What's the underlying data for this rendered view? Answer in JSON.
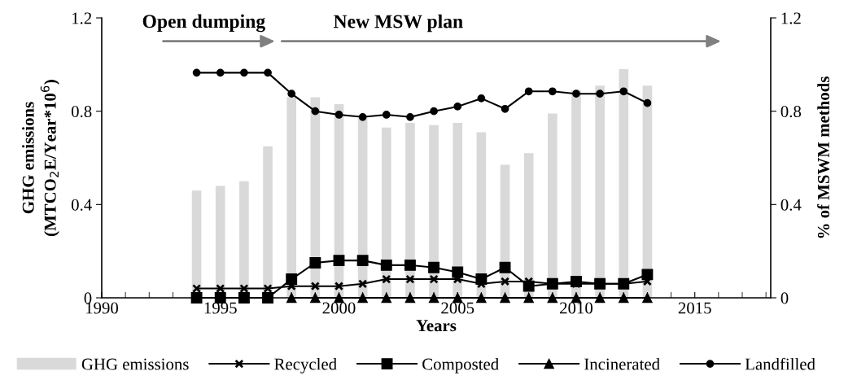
{
  "chart_data": {
    "type": "bar",
    "xlabel": "Years",
    "ylabel": "GHG emissions\n(MTCO$_{2}$E/Year*10$^{6}$)",
    "y2label": "% of MSWM methods",
    "x": [
      1994,
      1995,
      1996,
      1997,
      1998,
      1999,
      2000,
      2001,
      2002,
      2003,
      2004,
      2005,
      2006,
      2007,
      2008,
      2009,
      2010,
      2011,
      2012,
      2013
    ],
    "series": [
      {
        "name": "GHG emissions",
        "color": "#d9d9d9",
        "values": [
          0.46,
          0.48,
          0.5,
          0.65,
          0.86,
          0.86,
          0.83,
          0.77,
          0.73,
          0.75,
          0.74,
          0.75,
          0.71,
          0.57,
          0.62,
          0.79,
          0.89,
          0.91,
          0.98,
          0.91
        ]
      },
      {
        "name": "Recycled",
        "type": "line",
        "axis": "y2",
        "color": "#000000",
        "marker": "cross",
        "values": [
          0.04,
          0.04,
          0.04,
          0.04,
          0.05,
          0.05,
          0.05,
          0.06,
          0.08,
          0.08,
          0.08,
          0.08,
          0.06,
          0.07,
          0.07,
          0.06,
          0.06,
          0.06,
          0.06,
          0.07
        ]
      },
      {
        "name": "Composted",
        "type": "line",
        "axis": "y2",
        "color": "#000000",
        "marker": "square",
        "values": [
          0,
          0,
          0,
          0,
          0.08,
          0.15,
          0.16,
          0.16,
          0.14,
          0.14,
          0.13,
          0.11,
          0.08,
          0.13,
          0.05,
          0.06,
          0.07,
          0.06,
          0.06,
          0.1
        ]
      },
      {
        "name": "Incinerated",
        "type": "line",
        "axis": "y2",
        "color": "#000000",
        "marker": "triangle",
        "values": [
          null,
          null,
          null,
          null,
          0,
          0,
          0,
          0,
          0,
          0,
          0,
          0,
          0,
          0,
          0,
          0,
          0,
          0,
          0,
          0
        ]
      },
      {
        "name": "Landfilled",
        "type": "line",
        "axis": "y2",
        "color": "#000000",
        "marker": "circle",
        "values": [
          0.965,
          0.965,
          0.965,
          0.965,
          0.875,
          0.8,
          0.785,
          0.775,
          0.785,
          0.775,
          0.8,
          0.82,
          0.855,
          0.81,
          0.885,
          0.885,
          0.875,
          0.875,
          0.885,
          0.835
        ]
      }
    ],
    "xlim": [
      1990,
      2018.2
    ],
    "xticks": [
      1990,
      1995,
      2000,
      2005,
      2010,
      2015
    ],
    "ylim": [
      0,
      1.2
    ],
    "yticks": [
      0,
      0.4,
      0.8,
      1.2
    ],
    "y2lim": [
      0,
      1.2
    ],
    "y2ticks": [
      0,
      0.4,
      0.8,
      1.2
    ],
    "annotations": [
      "Open dumping",
      "New MSW plan"
    ],
    "legend": "bottom",
    "grid": false
  }
}
